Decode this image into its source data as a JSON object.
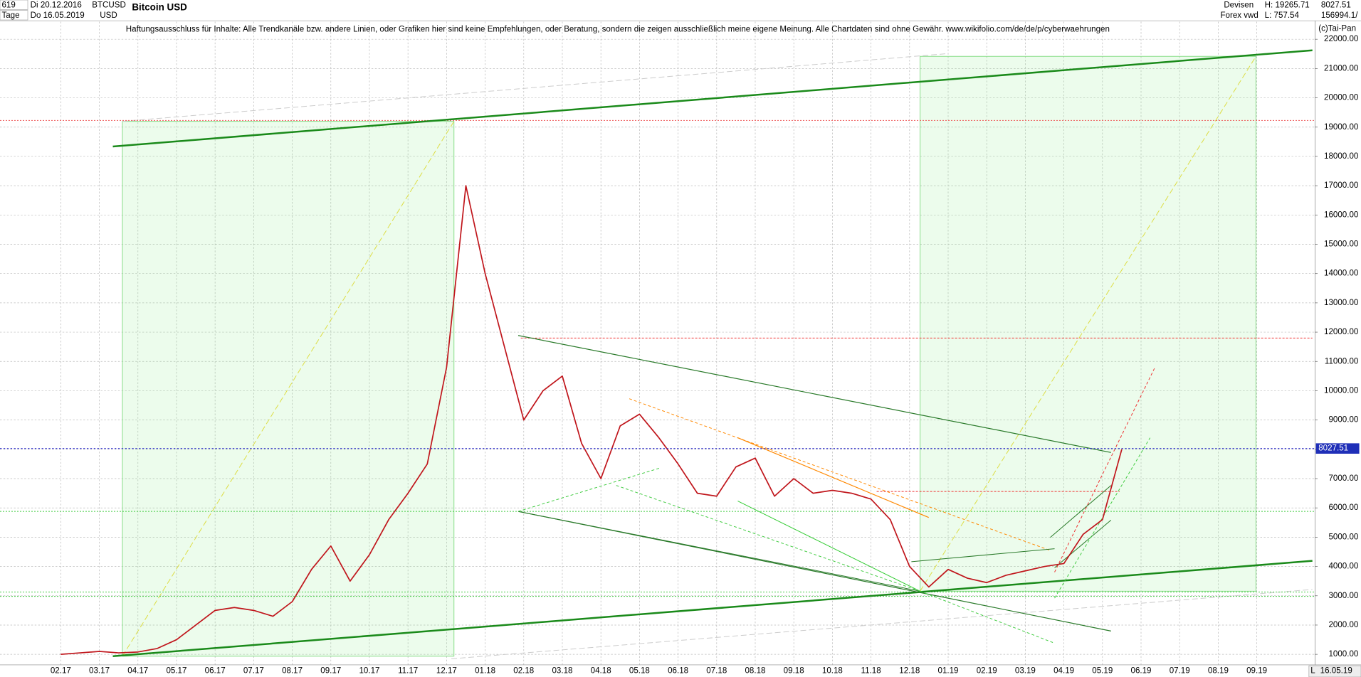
{
  "header": {
    "count": "619",
    "start_date": "Di 20.12.2016",
    "period": "Tage",
    "end_date": "Do 16.05.2019",
    "symbol": "BTCUSD",
    "currency": "USD",
    "market": "Devisen",
    "source": "Forex vwd",
    "high": "H: 19265.71",
    "low": "L: 757.54",
    "volume": "156994.1/"
  },
  "disclaimer": "Haftungsausschluss für Inhalte: Alle Trendkanäle bzw. andere Linien, oder Grafiken hier sind keine Empfehlungen, oder Beratung, sondern die zeigen ausschließlich meine eigene Meinung. Alle Chartdaten sind ohne Gewähr.  www.wikifolio.com/de/de/p/cyberwaehrungen",
  "copyright": "(c)Tai-Pan",
  "footer": {
    "date": "16.05.19",
    "scale": "L"
  },
  "chart_data": {
    "type": "line",
    "title": "Bitcoin USD",
    "color": "#c0161c",
    "last_value": 8027.51,
    "categories": [
      "02.17",
      null,
      "03.17",
      null,
      "04.17",
      null,
      "05.17",
      null,
      "06.17",
      null,
      "07.17",
      null,
      "08.17",
      null,
      "09.17",
      null,
      "10.17",
      null,
      "11.17",
      null,
      "12.17",
      null,
      "01.18",
      null,
      "02.18",
      null,
      "03.18",
      null,
      "04.18",
      null,
      "05.18",
      null,
      "06.18",
      null,
      "07.18",
      null,
      "08.18",
      null,
      "09.18",
      null,
      "10.18",
      null,
      "11.18",
      null,
      "12.18",
      null,
      "01.19",
      null,
      "02.19",
      null,
      "03.19",
      null,
      "04.19",
      null,
      "05.19",
      null,
      "06.19",
      null,
      "07.19",
      null,
      "08.19",
      null,
      "09.19"
    ],
    "values": [
      1000,
      1050,
      1100,
      1050,
      1080,
      1200,
      1500,
      2000,
      2500,
      2600,
      2500,
      2300,
      2800,
      3900,
      4700,
      3500,
      4400,
      5600,
      6500,
      7500,
      10800,
      17000,
      14000,
      11500,
      9000,
      10000,
      10500,
      8200,
      7000,
      8800,
      9200,
      8400,
      7500,
      6500,
      6400,
      7400,
      7700,
      6400,
      7000,
      6500,
      6600,
      6500,
      6300,
      5600,
      4000,
      3300,
      3900,
      3600,
      3450,
      3700,
      3850,
      4000,
      4100,
      5100,
      5600,
      8000,
      null,
      null,
      null,
      null,
      null,
      null,
      null
    ],
    "ylim": [
      700,
      22600
    ],
    "yticks": [
      {
        "value": 1000,
        "label": "1000.00"
      },
      {
        "value": 2000,
        "label": "2000.00"
      },
      {
        "value": 3000,
        "label": "3000.00"
      },
      {
        "value": 4000,
        "label": "4000.00"
      },
      {
        "value": 5000,
        "label": "5000.00"
      },
      {
        "value": 6000,
        "label": "6000.00"
      },
      {
        "value": 7000,
        "label": "7000.00"
      },
      {
        "value": 8000,
        "label": "8000.00"
      },
      {
        "value": 9000,
        "label": "9000.00"
      },
      {
        "value": 10000,
        "label": "10000.00"
      },
      {
        "value": 11000,
        "label": "11000.00"
      },
      {
        "value": 12000,
        "label": "12000.00"
      },
      {
        "value": 13000,
        "label": "13000.00"
      },
      {
        "value": 14000,
        "label": "14000.00"
      },
      {
        "value": 15000,
        "label": "15000.00"
      },
      {
        "value": 16000,
        "label": "16000.00"
      },
      {
        "value": 17000,
        "label": "17000.00"
      },
      {
        "value": 18000,
        "label": "18000.00"
      },
      {
        "value": 19000,
        "label": "19000.00"
      },
      {
        "value": 20000,
        "label": "20000.00"
      },
      {
        "value": 21000,
        "label": "21000.00"
      },
      {
        "value": 22000,
        "label": "22000.00"
      }
    ],
    "grid": true
  }
}
